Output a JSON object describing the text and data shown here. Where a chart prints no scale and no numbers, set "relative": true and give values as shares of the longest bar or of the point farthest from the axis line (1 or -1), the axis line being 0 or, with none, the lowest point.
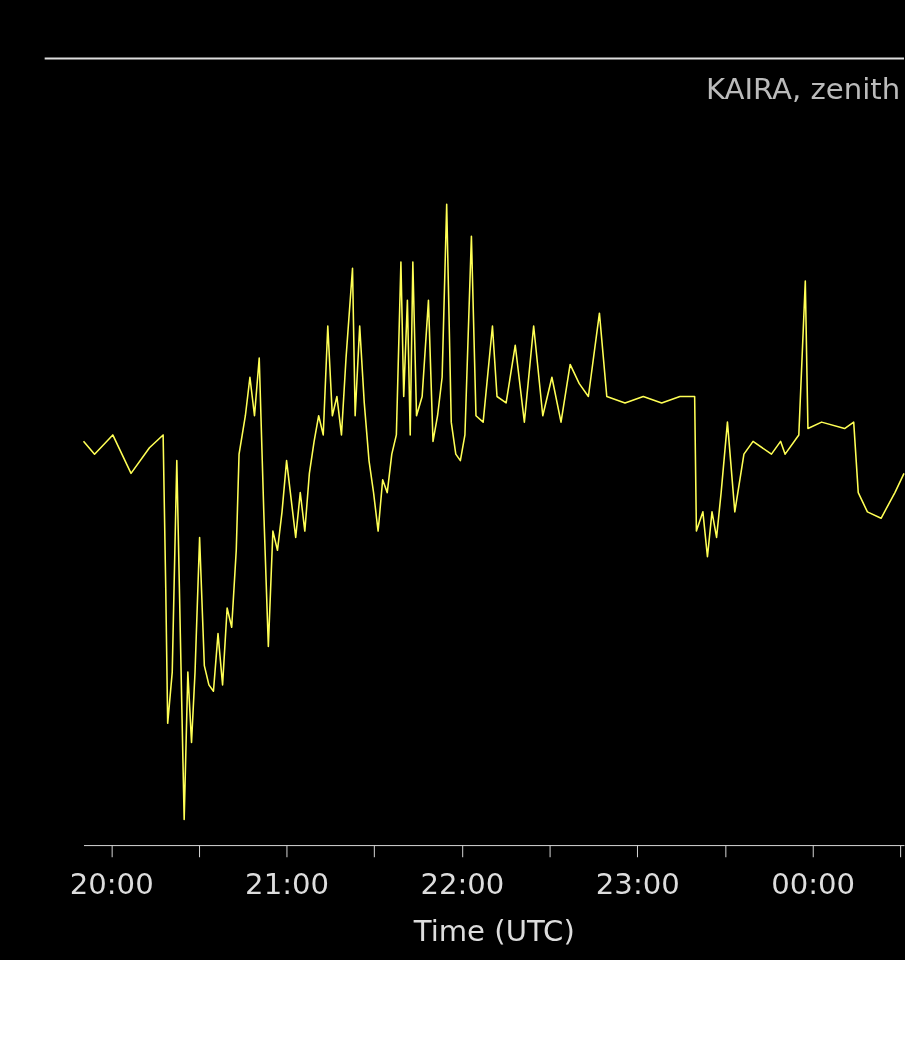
{
  "chart_data": {
    "type": "line",
    "relative": true,
    "xlabel": "Time (UTC)",
    "annotations": [
      "KAIRA, zenith"
    ],
    "xlim": [
      19.842,
      24.521
    ],
    "xticks": [
      {
        "value": 20,
        "label": "20:00"
      },
      {
        "value": 20.5,
        "label": null
      },
      {
        "value": 21,
        "label": "21:00"
      },
      {
        "value": 21.5,
        "label": null
      },
      {
        "value": 22,
        "label": "22:00"
      },
      {
        "value": 22.5,
        "label": null
      },
      {
        "value": 23,
        "label": "23:00"
      },
      {
        "value": 23.5,
        "label": null
      },
      {
        "value": 24,
        "label": "00:00"
      },
      {
        "value": 24.5,
        "label": null
      }
    ],
    "series": [
      {
        "color": "#ffff55",
        "x": [
          19.842,
          19.905,
          20.009,
          20.113,
          20.218,
          20.296,
          20.311,
          20.322,
          20.348,
          20.374,
          20.4,
          20.416,
          20.437,
          20.458,
          20.478,
          20.504,
          20.531,
          20.557,
          20.583,
          20.609,
          20.635,
          20.661,
          20.687,
          20.713,
          20.729,
          20.765,
          20.791,
          20.817,
          20.844,
          20.87,
          20.896,
          20.922,
          20.948,
          20.974,
          21.0,
          21.052,
          21.078,
          21.104,
          21.13,
          21.157,
          21.183,
          21.209,
          21.235,
          21.261,
          21.287,
          21.313,
          21.339,
          21.376,
          21.391,
          21.417,
          21.443,
          21.47,
          21.496,
          21.522,
          21.548,
          21.574,
          21.6,
          21.626,
          21.652,
          21.668,
          21.689,
          21.705,
          21.72,
          21.741,
          21.773,
          21.809,
          21.835,
          21.861,
          21.887,
          21.913,
          21.939,
          21.965,
          21.991,
          22.017,
          22.054,
          22.08,
          22.121,
          22.174,
          22.2,
          22.252,
          22.304,
          22.356,
          22.409,
          22.461,
          22.513,
          22.565,
          22.617,
          22.669,
          22.721,
          22.784,
          22.826,
          22.93,
          23.034,
          23.139,
          23.243,
          23.327,
          23.337,
          23.374,
          23.4,
          23.426,
          23.452,
          23.478,
          23.514,
          23.556,
          23.608,
          23.66,
          23.765,
          23.817,
          23.843,
          23.921,
          23.958,
          23.973,
          24.051,
          24.182,
          24.234,
          24.26,
          24.312,
          24.39,
          24.469,
          24.521
        ],
        "values": [
          0.63,
          0.61,
          0.64,
          0.58,
          0.62,
          0.64,
          0.4,
          0.19,
          0.27,
          0.6,
          0.25,
          0.04,
          0.27,
          0.16,
          0.27,
          0.48,
          0.28,
          0.25,
          0.24,
          0.33,
          0.25,
          0.37,
          0.34,
          0.46,
          0.61,
          0.67,
          0.73,
          0.67,
          0.76,
          0.52,
          0.31,
          0.49,
          0.46,
          0.52,
          0.6,
          0.48,
          0.55,
          0.49,
          0.58,
          0.63,
          0.67,
          0.64,
          0.81,
          0.67,
          0.7,
          0.64,
          0.76,
          0.9,
          0.67,
          0.81,
          0.69,
          0.6,
          0.55,
          0.49,
          0.57,
          0.55,
          0.61,
          0.64,
          0.91,
          0.7,
          0.85,
          0.64,
          0.91,
          0.67,
          0.7,
          0.85,
          0.63,
          0.67,
          0.73,
          1,
          0.66,
          0.61,
          0.6,
          0.64,
          0.95,
          0.67,
          0.66,
          0.81,
          0.7,
          0.69,
          0.78,
          0.66,
          0.81,
          0.67,
          0.73,
          0.66,
          0.75,
          0.72,
          0.7,
          0.83,
          0.7,
          0.69,
          0.7,
          0.69,
          0.7,
          0.7,
          0.49,
          0.52,
          0.45,
          0.52,
          0.48,
          0.55,
          0.66,
          0.52,
          0.61,
          0.63,
          0.61,
          0.63,
          0.61,
          0.64,
          0.88,
          0.65,
          0.66,
          0.65,
          0.66,
          0.55,
          0.52,
          0.51,
          0.55,
          0.58
        ]
      }
    ]
  }
}
